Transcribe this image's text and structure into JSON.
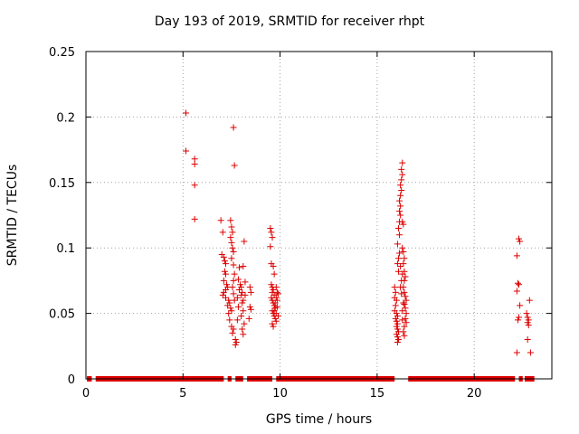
{
  "chart_data": {
    "type": "scatter",
    "title": "Day 193 of 2019, SRMTID for receiver rhpt",
    "xlabel": "GPS time / hours",
    "ylabel": "SRMTID / TECUs",
    "xlim": [
      0,
      24
    ],
    "ylim": [
      0,
      0.25
    ],
    "x_ticks": [
      "0",
      "5",
      "10",
      "15",
      "20"
    ],
    "y_ticks": [
      "0",
      "0.05",
      "0.1",
      "0.15",
      "0.2",
      "0.25"
    ],
    "grid": true,
    "marker": "+",
    "color": "#dd0000",
    "zero_segments": [
      [
        0.05,
        0.3
      ],
      [
        0.5,
        7.1
      ],
      [
        7.3,
        7.5
      ],
      [
        7.7,
        8.1
      ],
      [
        8.3,
        9.6
      ],
      [
        9.8,
        15.9
      ],
      [
        16.6,
        22.1
      ],
      [
        22.3,
        22.5
      ],
      [
        22.6,
        23.1
      ]
    ],
    "points": [
      [
        5.15,
        0.203
      ],
      [
        5.15,
        0.174
      ],
      [
        5.6,
        0.168
      ],
      [
        5.6,
        0.164
      ],
      [
        5.6,
        0.148
      ],
      [
        5.6,
        0.122
      ],
      [
        6.95,
        0.121
      ],
      [
        7.05,
        0.112
      ],
      [
        7.0,
        0.095
      ],
      [
        7.1,
        0.093
      ],
      [
        7.15,
        0.09
      ],
      [
        7.2,
        0.088
      ],
      [
        7.15,
        0.082
      ],
      [
        7.2,
        0.08
      ],
      [
        7.1,
        0.075
      ],
      [
        7.25,
        0.072
      ],
      [
        7.3,
        0.07
      ],
      [
        7.2,
        0.068
      ],
      [
        7.1,
        0.066
      ],
      [
        7.05,
        0.064
      ],
      [
        7.2,
        0.062
      ],
      [
        7.35,
        0.06
      ],
      [
        7.4,
        0.058
      ],
      [
        7.3,
        0.056
      ],
      [
        7.45,
        0.054
      ],
      [
        7.5,
        0.052
      ],
      [
        7.35,
        0.05
      ],
      [
        7.4,
        0.045
      ],
      [
        7.45,
        0.121
      ],
      [
        7.5,
        0.116
      ],
      [
        7.55,
        0.112
      ],
      [
        7.45,
        0.108
      ],
      [
        7.5,
        0.104
      ],
      [
        7.55,
        0.1
      ],
      [
        7.6,
        0.097
      ],
      [
        7.5,
        0.092
      ],
      [
        7.6,
        0.087
      ],
      [
        7.65,
        0.08
      ],
      [
        7.6,
        0.075
      ],
      [
        7.55,
        0.07
      ],
      [
        7.6,
        0.065
      ],
      [
        7.65,
        0.06
      ],
      [
        7.5,
        0.04
      ],
      [
        7.6,
        0.038
      ],
      [
        7.55,
        0.035
      ],
      [
        7.6,
        0.192
      ],
      [
        7.65,
        0.163
      ],
      [
        7.7,
        0.03
      ],
      [
        7.75,
        0.028
      ],
      [
        7.7,
        0.026
      ],
      [
        7.8,
        0.045
      ],
      [
        7.85,
        0.055
      ],
      [
        7.8,
        0.062
      ],
      [
        7.9,
        0.068
      ],
      [
        7.95,
        0.072
      ],
      [
        7.85,
        0.076
      ],
      [
        7.9,
        0.085
      ],
      [
        8.0,
        0.07
      ],
      [
        8.05,
        0.066
      ],
      [
        8.0,
        0.064
      ],
      [
        8.1,
        0.06
      ],
      [
        8.05,
        0.058
      ],
      [
        8.1,
        0.052
      ],
      [
        8.0,
        0.048
      ],
      [
        8.15,
        0.042
      ],
      [
        8.05,
        0.038
      ],
      [
        8.1,
        0.034
      ],
      [
        8.15,
        0.105
      ],
      [
        8.1,
        0.086
      ],
      [
        8.2,
        0.074
      ],
      [
        8.2,
        0.064
      ],
      [
        8.45,
        0.07
      ],
      [
        8.5,
        0.066
      ],
      [
        8.45,
        0.055
      ],
      [
        8.5,
        0.053
      ],
      [
        8.4,
        0.046
      ],
      [
        9.5,
        0.115
      ],
      [
        9.55,
        0.112
      ],
      [
        9.6,
        0.108
      ],
      [
        9.5,
        0.101
      ],
      [
        9.55,
        0.088
      ],
      [
        9.65,
        0.086
      ],
      [
        9.7,
        0.08
      ],
      [
        9.55,
        0.072
      ],
      [
        9.6,
        0.07
      ],
      [
        9.65,
        0.068
      ],
      [
        9.6,
        0.066
      ],
      [
        9.7,
        0.064
      ],
      [
        9.55,
        0.062
      ],
      [
        9.6,
        0.06
      ],
      [
        9.65,
        0.058
      ],
      [
        9.7,
        0.056
      ],
      [
        9.75,
        0.054
      ],
      [
        9.6,
        0.052
      ],
      [
        9.65,
        0.05
      ],
      [
        9.7,
        0.048
      ],
      [
        9.75,
        0.046
      ],
      [
        9.8,
        0.044
      ],
      [
        9.6,
        0.042
      ],
      [
        9.65,
        0.04
      ],
      [
        9.7,
        0.052
      ],
      [
        9.8,
        0.05
      ],
      [
        9.75,
        0.058
      ],
      [
        9.8,
        0.062
      ],
      [
        9.85,
        0.066
      ],
      [
        9.8,
        0.07
      ],
      [
        9.85,
        0.055
      ],
      [
        9.9,
        0.048
      ],
      [
        9.85,
        0.06
      ],
      [
        9.9,
        0.065
      ],
      [
        15.9,
        0.07
      ],
      [
        15.95,
        0.066
      ],
      [
        15.9,
        0.062
      ],
      [
        16.0,
        0.06
      ],
      [
        15.95,
        0.056
      ],
      [
        15.9,
        0.052
      ],
      [
        16.0,
        0.05
      ],
      [
        16.05,
        0.048
      ],
      [
        15.95,
        0.046
      ],
      [
        16.0,
        0.044
      ],
      [
        16.05,
        0.042
      ],
      [
        16.0,
        0.04
      ],
      [
        16.05,
        0.038
      ],
      [
        16.1,
        0.036
      ],
      [
        16.0,
        0.034
      ],
      [
        16.05,
        0.032
      ],
      [
        16.1,
        0.03
      ],
      [
        16.05,
        0.028
      ],
      [
        16.1,
        0.082
      ],
      [
        16.05,
        0.088
      ],
      [
        16.1,
        0.092
      ],
      [
        16.15,
        0.096
      ],
      [
        16.05,
        0.103
      ],
      [
        16.15,
        0.11
      ],
      [
        16.1,
        0.115
      ],
      [
        16.15,
        0.12
      ],
      [
        16.2,
        0.125
      ],
      [
        16.15,
        0.128
      ],
      [
        16.2,
        0.132
      ],
      [
        16.15,
        0.136
      ],
      [
        16.2,
        0.14
      ],
      [
        16.25,
        0.144
      ],
      [
        16.2,
        0.148
      ],
      [
        16.25,
        0.152
      ],
      [
        16.3,
        0.156
      ],
      [
        16.25,
        0.16
      ],
      [
        16.3,
        0.165
      ],
      [
        16.3,
        0.12
      ],
      [
        16.35,
        0.118
      ],
      [
        16.3,
        0.1
      ],
      [
        16.35,
        0.097
      ],
      [
        16.4,
        0.092
      ],
      [
        16.35,
        0.088
      ],
      [
        16.4,
        0.082
      ],
      [
        16.45,
        0.078
      ],
      [
        16.4,
        0.075
      ],
      [
        16.35,
        0.07
      ],
      [
        16.4,
        0.066
      ],
      [
        16.45,
        0.063
      ],
      [
        16.5,
        0.06
      ],
      [
        16.4,
        0.057
      ],
      [
        16.45,
        0.054
      ],
      [
        16.5,
        0.05
      ],
      [
        16.45,
        0.046
      ],
      [
        16.5,
        0.043
      ],
      [
        16.4,
        0.04
      ],
      [
        16.35,
        0.036
      ],
      [
        16.4,
        0.033
      ],
      [
        16.35,
        0.058
      ],
      [
        16.3,
        0.052
      ],
      [
        16.3,
        0.045
      ],
      [
        16.25,
        0.065
      ],
      [
        16.2,
        0.07
      ],
      [
        16.25,
        0.075
      ],
      [
        16.3,
        0.08
      ],
      [
        16.2,
        0.086
      ],
      [
        22.2,
        0.094
      ],
      [
        22.3,
        0.107
      ],
      [
        22.35,
        0.105
      ],
      [
        22.25,
        0.073
      ],
      [
        22.3,
        0.072
      ],
      [
        22.2,
        0.067
      ],
      [
        22.35,
        0.056
      ],
      [
        22.3,
        0.047
      ],
      [
        22.25,
        0.045
      ],
      [
        22.2,
        0.02
      ],
      [
        22.7,
        0.05
      ],
      [
        22.75,
        0.047
      ],
      [
        22.8,
        0.045
      ],
      [
        22.75,
        0.043
      ],
      [
        22.8,
        0.041
      ],
      [
        22.85,
        0.06
      ],
      [
        22.75,
        0.03
      ],
      [
        22.9,
        0.02
      ]
    ]
  }
}
